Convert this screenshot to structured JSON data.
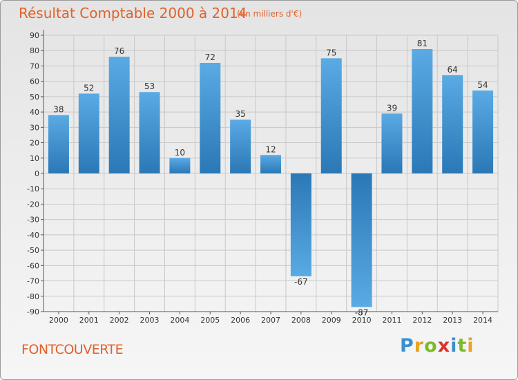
{
  "title": "Résultat Comptable 2000 à 2014",
  "unit": "(en milliers d'€)",
  "commune": "FONTCOUVERTE",
  "logo": {
    "text": "Proxiti",
    "letters": [
      {
        "ch": "P",
        "color": "#3a8fd0"
      },
      {
        "ch": "r",
        "color": "#e9a321"
      },
      {
        "ch": "o",
        "color": "#7fba2a"
      },
      {
        "ch": "x",
        "color": "#e0312d"
      },
      {
        "ch": "i",
        "color": "#3a8fd0"
      },
      {
        "ch": "t",
        "color": "#7fba2a"
      },
      {
        "ch": "i",
        "color": "#e9a321"
      }
    ]
  },
  "colors": {
    "title": "#e0612a",
    "bar_top": "#5aaae4",
    "bar_bottom": "#2a78b6",
    "grid": "#c8c8c8"
  },
  "chart_data": {
    "type": "bar",
    "title": "Résultat Comptable 2000 à 2014",
    "ylabel": "(en milliers d'€)",
    "xlabel": "",
    "categories": [
      "2000",
      "2001",
      "2002",
      "2003",
      "2004",
      "2005",
      "2006",
      "2007",
      "2008",
      "2009",
      "2010",
      "2011",
      "2012",
      "2013",
      "2014"
    ],
    "values": [
      38,
      52,
      76,
      53,
      10,
      72,
      35,
      12,
      -67,
      75,
      -87,
      39,
      81,
      64,
      54
    ],
    "ylim": [
      -90,
      90
    ],
    "yticks": [
      90,
      80,
      70,
      60,
      50,
      40,
      30,
      20,
      10,
      0,
      -10,
      -20,
      -30,
      -40,
      -50,
      -60,
      -70,
      -80,
      -90
    ],
    "grid": true
  }
}
